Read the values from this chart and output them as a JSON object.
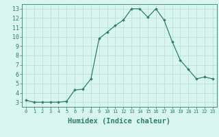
{
  "x": [
    0,
    1,
    2,
    3,
    4,
    5,
    6,
    7,
    8,
    9,
    10,
    11,
    12,
    13,
    14,
    15,
    16,
    17,
    18,
    19,
    20,
    21,
    22,
    23
  ],
  "y": [
    3.2,
    3.0,
    3.0,
    3.0,
    3.0,
    3.1,
    4.3,
    4.4,
    5.5,
    9.8,
    10.5,
    11.2,
    11.8,
    13.0,
    13.0,
    12.1,
    13.0,
    11.8,
    9.5,
    7.5,
    6.5,
    5.5,
    5.7,
    5.5
  ],
  "line_color": "#2e7d6e",
  "marker": "D",
  "marker_size": 1.8,
  "xlabel": "Humidex (Indice chaleur)",
  "xlabel_fontsize": 7.5,
  "xlim": [
    -0.5,
    23.5
  ],
  "ylim": [
    2.5,
    13.5
  ],
  "yticks": [
    3,
    4,
    5,
    6,
    7,
    8,
    9,
    10,
    11,
    12,
    13
  ],
  "xticks": [
    0,
    1,
    2,
    3,
    4,
    5,
    6,
    7,
    8,
    9,
    10,
    11,
    12,
    13,
    14,
    15,
    16,
    17,
    18,
    19,
    20,
    21,
    22,
    23
  ],
  "xtick_labels": [
    "0",
    "1",
    "2",
    "3",
    "4",
    "5",
    "6",
    "7",
    "8",
    "9",
    "10",
    "11",
    "12",
    "13",
    "14",
    "15",
    "16",
    "17",
    "18",
    "19",
    "20",
    "21",
    "22",
    "23"
  ],
  "bg_color": "#d8f5f0",
  "grid_color": "#b8ddd8",
  "line_width": 0.9,
  "tick_color": "#2e7d6e",
  "label_color": "#2e7d6e",
  "spine_color": "#2e7d6e",
  "xtick_fontsize": 5.0,
  "ytick_fontsize": 6.0
}
